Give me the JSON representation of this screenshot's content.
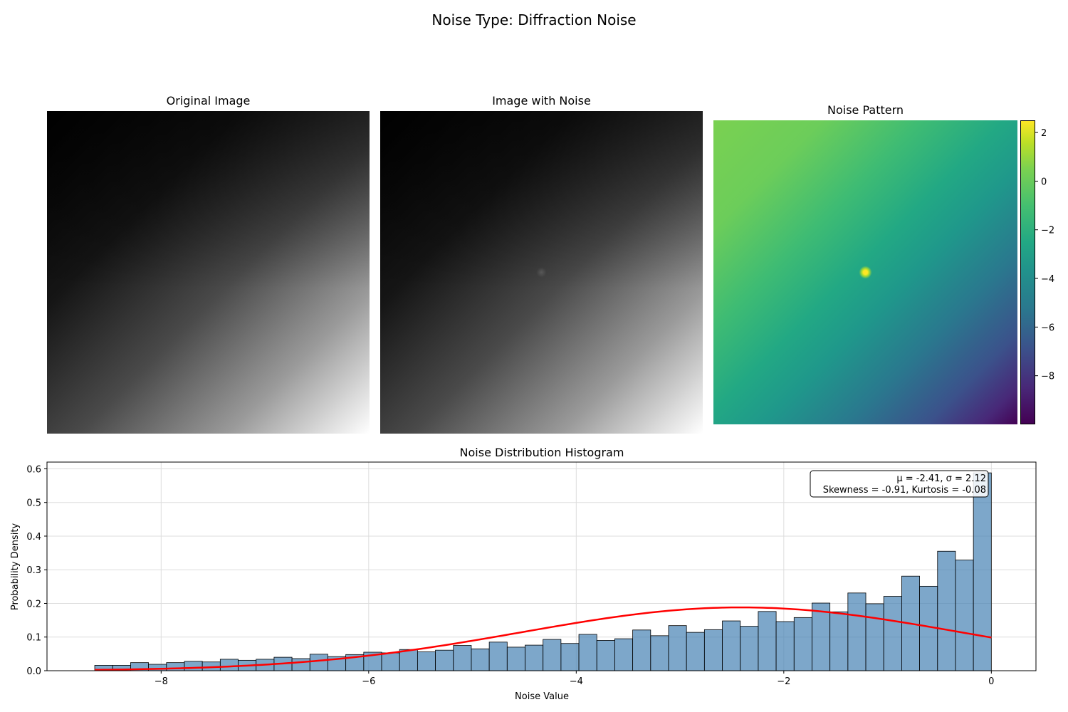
{
  "figure": {
    "suptitle": "Noise Type: Diffraction Noise"
  },
  "panels": {
    "original_title": "Original Image",
    "noisy_title": "Image with Noise",
    "noise_title": "Noise Pattern"
  },
  "colorbar": {
    "colormap": "viridis",
    "range": [
      -10.0,
      2.5
    ],
    "ticks": [
      2,
      0,
      -2,
      -4,
      -6,
      -8
    ],
    "tick_labels": [
      "2",
      "0",
      "−2",
      "−4",
      "−6",
      "−8"
    ]
  },
  "histogram": {
    "stats_line1": "μ = -2.41, σ = 2.12",
    "stats_line2": "Skewness = -0.91, Kurtosis = -0.08"
  },
  "chart_data": {
    "type": "bar",
    "title": "Noise Distribution Histogram",
    "xlabel": "Noise Value",
    "ylabel": "Probability Density",
    "xlim": [
      -9.1,
      0.43
    ],
    "ylim": [
      0,
      0.62
    ],
    "xticks": [
      -8,
      -6,
      -4,
      -2,
      0
    ],
    "xtick_labels": [
      "−8",
      "−6",
      "−4",
      "−2",
      "0"
    ],
    "yticks": [
      0.0,
      0.1,
      0.2,
      0.3,
      0.4,
      0.5,
      0.6
    ],
    "ytick_labels": [
      "0.0",
      "0.1",
      "0.2",
      "0.3",
      "0.4",
      "0.5",
      "0.6"
    ],
    "grid": true,
    "bar_color": "#4682b4",
    "bin_start": -8.64,
    "bin_end": 0.0,
    "values": [
      0.016,
      0.016,
      0.024,
      0.019,
      0.024,
      0.028,
      0.026,
      0.034,
      0.031,
      0.034,
      0.04,
      0.036,
      0.049,
      0.042,
      0.048,
      0.055,
      0.053,
      0.063,
      0.056,
      0.061,
      0.075,
      0.065,
      0.085,
      0.07,
      0.076,
      0.093,
      0.081,
      0.108,
      0.09,
      0.095,
      0.121,
      0.104,
      0.134,
      0.114,
      0.122,
      0.148,
      0.132,
      0.176,
      0.146,
      0.158,
      0.201,
      0.175,
      0.231,
      0.199,
      0.221,
      0.281,
      0.251,
      0.355,
      0.329,
      0.588
    ],
    "fit_line": {
      "type": "normal_pdf",
      "mu": -2.41,
      "sigma": 2.12,
      "color": "#ff0000"
    }
  }
}
